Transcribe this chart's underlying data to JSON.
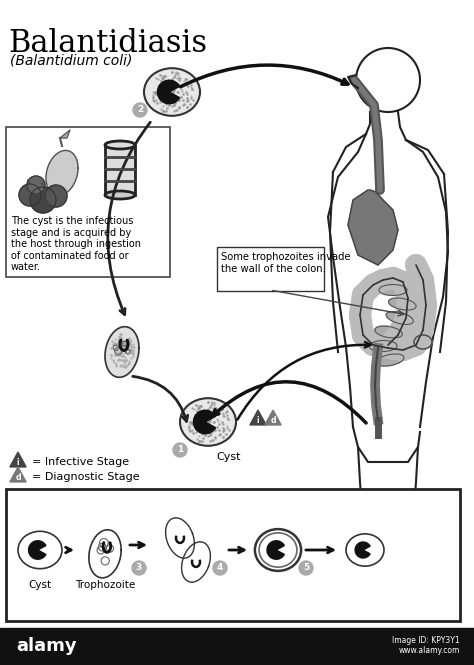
{
  "title": "Balantidiasis",
  "subtitle": "(Balantidium coli)",
  "title_fontsize": 22,
  "subtitle_fontsize": 10,
  "bg_color": "#ffffff",
  "text_color": "#000000",
  "legend_infective": "= Infective Stage",
  "legend_diagnostic": "= Diagnostic Stage",
  "box_text": "The cyst is the infectious\nstage and is acquired by\nthe host through ingestion\nof contaminated food or\nwater.",
  "colon_text": "Some trophozoites invade\nthe wall of the colon.",
  "cyst_label": "Cyst",
  "trophozoite_label": "Trophozoite",
  "alamy_text": "alamy",
  "image_id": "Image ID: KPY3Y1\nwww.alamy.com"
}
